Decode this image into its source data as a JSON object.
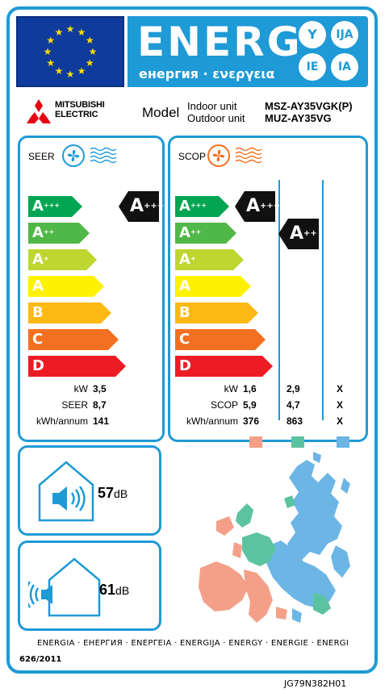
{
  "header": {
    "title": "ENERG",
    "subtitle": "енергия · ενεργεια",
    "lang_codes": [
      "Y",
      "IJA",
      "IE",
      "IA"
    ]
  },
  "manufacturer": {
    "name_line1": "MITSUBISHI",
    "name_line2": "ELECTRIC"
  },
  "model": {
    "label": "Model",
    "indoor_label": "Indoor unit",
    "outdoor_label": "Outdoor unit",
    "indoor_value": "MSZ-AY35VGK(P)",
    "outdoor_value": "MUZ-AY35VG"
  },
  "classes": [
    {
      "letter": "A",
      "sup": "+++",
      "color": "#00a651"
    },
    {
      "letter": "A",
      "sup": "++",
      "color": "#50b848"
    },
    {
      "letter": "A",
      "sup": "+",
      "color": "#bed630"
    },
    {
      "letter": "A",
      "sup": "",
      "color": "#fff200"
    },
    {
      "letter": "B",
      "sup": "",
      "color": "#fdb913"
    },
    {
      "letter": "C",
      "sup": "",
      "color": "#f37021"
    },
    {
      "letter": "D",
      "sup": "",
      "color": "#ed1c24"
    }
  ],
  "seer": {
    "title": "SEER",
    "rating": {
      "letter": "A",
      "sup": "+++"
    },
    "rows": [
      {
        "label": "kW",
        "value": "3,5"
      },
      {
        "label": "SEER",
        "value": "8,7"
      },
      {
        "label": "kWh/annum",
        "value": "141"
      }
    ]
  },
  "scop": {
    "title": "SCOP",
    "ratings": [
      {
        "letter": "A",
        "sup": "+++"
      },
      {
        "letter": "A",
        "sup": "++"
      }
    ],
    "rows": [
      {
        "label": "kW",
        "values": [
          "1,6",
          "2,9",
          "X"
        ]
      },
      {
        "label": "SCOP",
        "values": [
          "5,9",
          "4,7",
          "X"
        ]
      },
      {
        "label": "kWh/annum",
        "values": [
          "376",
          "863",
          "X"
        ]
      }
    ],
    "zone_colors": [
      "#f4a088",
      "#5cc3a0",
      "#6cb6e6"
    ]
  },
  "noise": {
    "indoor": {
      "value": "57",
      "unit": "dB"
    },
    "outdoor": {
      "value": "61",
      "unit": "dB"
    }
  },
  "footer": {
    "languages": "ENERGIA · ЕНЕРГИЯ · ΕΝΕΡΓΕΙΑ · ENERGIJA · ENERGY · ENERGIE · ENERGI",
    "regulation": "626/2011",
    "code": "JG79N382H01"
  },
  "colors": {
    "frame": "#1e9ad6",
    "eu_blue": "#0f3b9c",
    "eu_star": "#ffde00",
    "seer_fan": "#1e9ad6",
    "scop_fan": "#f37021",
    "mitsubishi_red": "#e60012"
  }
}
